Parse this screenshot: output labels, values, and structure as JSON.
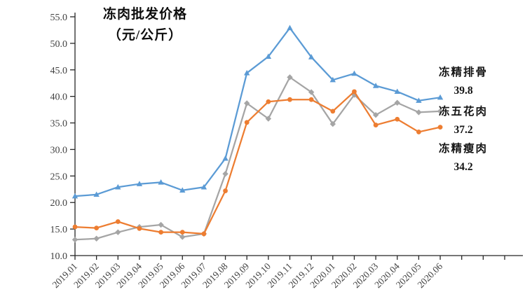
{
  "title": {
    "line1": "冻肉批发价格",
    "line2": "（元/公斤）"
  },
  "annotations": [
    {
      "series": "冻精排骨",
      "value": "39.8"
    },
    {
      "series": "冻五花肉",
      "value": "37.2"
    },
    {
      "series": "冻精瘦肉",
      "value": "34.2"
    }
  ],
  "chart_data": {
    "type": "line",
    "title": "冻肉批发价格（元/公斤）",
    "categories": [
      "2019.01",
      "2019.02",
      "2019.03",
      "2019.04",
      "2019.05",
      "2019.06",
      "2019.07",
      "2019.08",
      "2019.09",
      "2019.10",
      "2019.11",
      "2019.12",
      "2020.01",
      "2020.02",
      "2020.03",
      "2020.04",
      "2020.05",
      "2020.06"
    ],
    "series": [
      {
        "id": "dongjing-paigu",
        "name": "冻精排骨",
        "color": "#5B9BD5",
        "marker": "triangle",
        "end_label": "39.8",
        "values": [
          21.2,
          21.5,
          22.9,
          23.5,
          23.8,
          22.3,
          22.9,
          28.3,
          44.4,
          47.5,
          52.9,
          47.4,
          43.1,
          44.3,
          42.0,
          40.9,
          39.2,
          39.8
        ]
      },
      {
        "id": "dong-wuhuarou",
        "name": "冻五花肉",
        "color": "#A5A5A5",
        "marker": "diamond",
        "end_label": "37.2",
        "values": [
          13.0,
          13.2,
          14.4,
          15.4,
          15.8,
          13.5,
          14.1,
          25.4,
          38.7,
          35.8,
          43.6,
          40.8,
          34.8,
          40.3,
          36.5,
          38.8,
          37.0,
          37.2
        ]
      },
      {
        "id": "dongjing-shourou",
        "name": "冻精瘦肉",
        "color": "#ED7D31",
        "marker": "circle",
        "end_label": "34.2",
        "values": [
          15.4,
          15.2,
          16.4,
          15.1,
          14.4,
          14.4,
          14.1,
          22.2,
          35.1,
          39.0,
          39.4,
          39.4,
          37.2,
          40.9,
          34.6,
          35.7,
          33.3,
          34.2
        ]
      }
    ],
    "ylim": [
      10,
      55
    ],
    "ytick_step": 5,
    "ytick_labels": [
      "10.0",
      "15.0",
      "20.0",
      "25.0",
      "30.0",
      "35.0",
      "40.0",
      "45.0",
      "50.0",
      "55.0"
    ],
    "xlabel": "",
    "ylabel": "",
    "grid": false,
    "legend_position": "right-annotations",
    "axis_color": "#262626",
    "tick_label_color": "#404040"
  }
}
